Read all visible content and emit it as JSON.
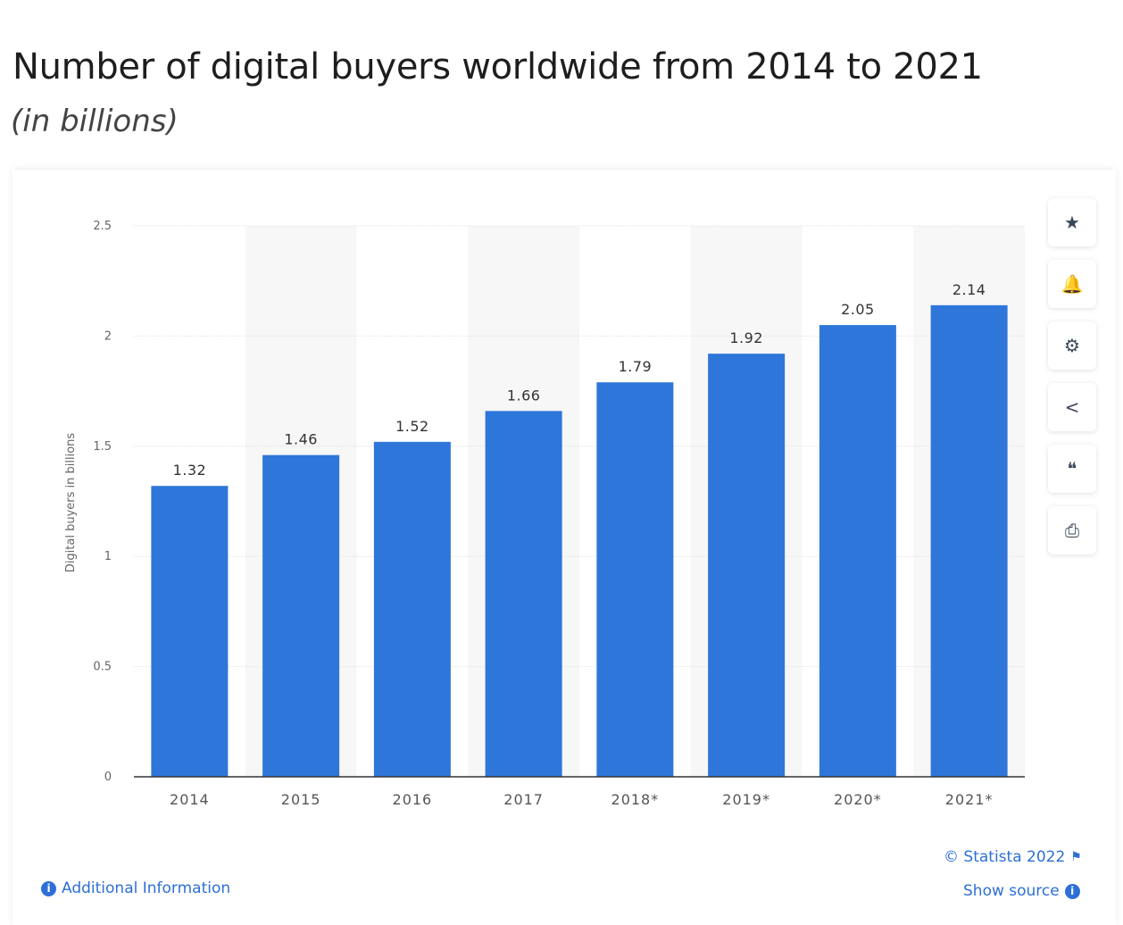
{
  "header": {
    "title": "Number of digital buyers worldwide from 2014 to 2021",
    "subtitle": "(in billions)"
  },
  "chart_data": {
    "type": "bar",
    "categories": [
      "2014",
      "2015",
      "2016",
      "2017",
      "2018*",
      "2019*",
      "2020*",
      "2021*"
    ],
    "values": [
      1.32,
      1.46,
      1.52,
      1.66,
      1.79,
      1.92,
      2.05,
      2.14
    ],
    "data_labels": [
      "1.32",
      "1.46",
      "1.52",
      "1.66",
      "1.79",
      "1.92",
      "2.05",
      "2.14"
    ],
    "title": "",
    "xlabel": "",
    "ylabel": "Digital buyers in billions",
    "ylim": [
      0,
      2.5
    ],
    "yticks": [
      "0",
      "0.5",
      "1",
      "1.5",
      "2",
      "2.5"
    ],
    "grid": true,
    "bar_color": "#2e76d9"
  },
  "toolbar": [
    {
      "icon": "star-icon",
      "glyph": "★"
    },
    {
      "icon": "bell-icon",
      "glyph": "🔔"
    },
    {
      "icon": "gear-icon",
      "glyph": "⚙"
    },
    {
      "icon": "share-icon",
      "glyph": "<"
    },
    {
      "icon": "quote-icon",
      "glyph": "❝"
    },
    {
      "icon": "print-icon",
      "glyph": "⎙"
    }
  ],
  "footer": {
    "additional_info": "Additional Information",
    "copyright": "© Statista 2022",
    "show_source": "Show source"
  }
}
